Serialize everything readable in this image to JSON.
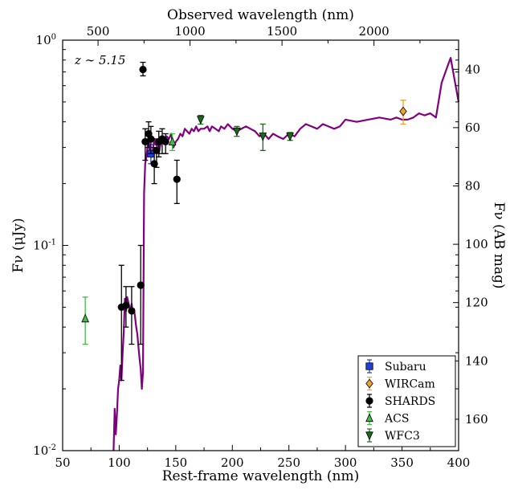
{
  "chart_data": {
    "type": "scatter",
    "annotation": "z ∼ 5.15",
    "xlabel": "Rest-frame wavelength (nm)",
    "ylabel": "Fν (μJy)",
    "top_xlabel": "Observed wavelength (nm)",
    "right_ylabel": "Fν (AB mag)",
    "xlim": [
      50,
      400
    ],
    "ylim": [
      0.01,
      1.0
    ],
    "yscale": "log",
    "x_ticks": [
      "50",
      "100",
      "150",
      "200",
      "250",
      "300",
      "350",
      "400"
    ],
    "y_ticks": [
      "10-2",
      "10-1",
      "100"
    ],
    "top_ticks": [
      "500",
      "1000",
      "1500",
      "2000"
    ],
    "right_ticks": [
      "40",
      "60",
      "80",
      "100",
      "120",
      "140",
      "160"
    ],
    "legend_position": "bottom-right",
    "model_color": "#800080",
    "model": {
      "x": [
        95,
        96,
        97,
        98,
        99,
        100,
        101,
        102,
        103,
        104,
        105,
        106,
        107,
        108,
        109,
        110,
        111,
        112,
        113,
        114,
        115,
        116,
        117,
        118,
        119,
        120,
        121,
        122,
        123,
        124,
        125,
        126,
        127,
        128,
        129,
        130,
        131,
        132,
        133,
        134,
        135,
        136,
        137,
        138,
        139,
        140,
        142,
        144,
        146,
        148,
        150,
        152,
        154,
        156,
        158,
        160,
        162,
        164,
        166,
        168,
        170,
        172,
        175,
        178,
        180,
        182,
        185,
        188,
        190,
        193,
        196,
        200,
        204,
        208,
        212,
        216,
        220,
        224,
        228,
        232,
        236,
        240,
        245,
        250,
        255,
        260,
        265,
        270,
        275,
        280,
        285,
        290,
        295,
        300,
        310,
        320,
        330,
        340,
        345,
        350,
        355,
        360,
        365,
        370,
        375,
        380,
        385,
        390,
        393,
        396,
        400
      ],
      "y": [
        0.0095,
        0.016,
        0.012,
        0.015,
        0.02,
        0.022,
        0.026,
        0.022,
        0.03,
        0.038,
        0.055,
        0.048,
        0.056,
        0.053,
        0.05,
        0.048,
        0.052,
        0.047,
        0.049,
        0.045,
        0.04,
        0.037,
        0.032,
        0.028,
        0.025,
        0.02,
        0.024,
        0.18,
        0.25,
        0.27,
        0.3,
        0.34,
        0.28,
        0.27,
        0.27,
        0.3,
        0.33,
        0.31,
        0.32,
        0.33,
        0.28,
        0.3,
        0.32,
        0.33,
        0.34,
        0.32,
        0.34,
        0.33,
        0.35,
        0.3,
        0.32,
        0.33,
        0.35,
        0.34,
        0.37,
        0.36,
        0.35,
        0.37,
        0.36,
        0.38,
        0.36,
        0.37,
        0.37,
        0.38,
        0.36,
        0.38,
        0.37,
        0.36,
        0.38,
        0.37,
        0.39,
        0.37,
        0.36,
        0.37,
        0.38,
        0.37,
        0.36,
        0.34,
        0.35,
        0.33,
        0.35,
        0.34,
        0.33,
        0.35,
        0.34,
        0.37,
        0.39,
        0.38,
        0.37,
        0.39,
        0.38,
        0.37,
        0.38,
        0.41,
        0.4,
        0.41,
        0.42,
        0.41,
        0.42,
        0.41,
        0.41,
        0.42,
        0.44,
        0.43,
        0.44,
        0.42,
        0.62,
        0.74,
        0.82,
        0.66,
        0.5
      ]
    },
    "series": [
      {
        "name": "Subaru",
        "marker": "square",
        "color": "#1f3fd6",
        "points": [
          {
            "x": 128,
            "y": 0.28,
            "lo": 0.25,
            "hi": 0.31
          }
        ]
      },
      {
        "name": "WIRCam",
        "marker": "diamond",
        "color": "#f0a030",
        "points": [
          {
            "x": 351,
            "y": 0.45,
            "lo": 0.39,
            "hi": 0.51
          }
        ]
      },
      {
        "name": "SHARDS",
        "marker": "circle",
        "color": "#000000",
        "points": [
          {
            "x": 102,
            "y": 0.05,
            "lo": 0.022,
            "hi": 0.08
          },
          {
            "x": 106,
            "y": 0.051,
            "lo": 0.04,
            "hi": 0.063
          },
          {
            "x": 111,
            "y": 0.048,
            "lo": 0.033,
            "hi": 0.063
          },
          {
            "x": 119,
            "y": 0.064,
            "lo": 0.033,
            "hi": 0.1
          },
          {
            "x": 121,
            "y": 0.72,
            "lo": 0.67,
            "hi": 0.78
          },
          {
            "x": 123,
            "y": 0.32,
            "lo": 0.26,
            "hi": 0.37
          },
          {
            "x": 126,
            "y": 0.35,
            "lo": 0.3,
            "hi": 0.4
          },
          {
            "x": 128,
            "y": 0.33,
            "lo": 0.28,
            "hi": 0.38
          },
          {
            "x": 131,
            "y": 0.25,
            "lo": 0.2,
            "hi": 0.3
          },
          {
            "x": 133,
            "y": 0.29,
            "lo": 0.24,
            "hi": 0.33
          },
          {
            "x": 135,
            "y": 0.32,
            "lo": 0.27,
            "hi": 0.36
          },
          {
            "x": 138,
            "y": 0.33,
            "lo": 0.28,
            "hi": 0.37
          },
          {
            "x": 141,
            "y": 0.32,
            "lo": 0.28,
            "hi": 0.35
          },
          {
            "x": 151,
            "y": 0.21,
            "lo": 0.16,
            "hi": 0.26
          }
        ]
      },
      {
        "name": "ACS",
        "marker": "triangle-up",
        "color": "#44bb44",
        "points": [
          {
            "x": 70,
            "y": 0.044,
            "lo": 0.033,
            "hi": 0.056
          },
          {
            "x": 147,
            "y": 0.32,
            "lo": 0.29,
            "hi": 0.35
          }
        ]
      },
      {
        "name": "WFC3",
        "marker": "triangle-down",
        "color": "#1a6b1a",
        "points": [
          {
            "x": 172,
            "y": 0.41,
            "lo": 0.39,
            "hi": 0.43
          },
          {
            "x": 204,
            "y": 0.36,
            "lo": 0.34,
            "hi": 0.38
          },
          {
            "x": 227,
            "y": 0.34,
            "lo": 0.29,
            "hi": 0.39
          },
          {
            "x": 251,
            "y": 0.34,
            "lo": 0.325,
            "hi": 0.355
          }
        ]
      }
    ]
  }
}
